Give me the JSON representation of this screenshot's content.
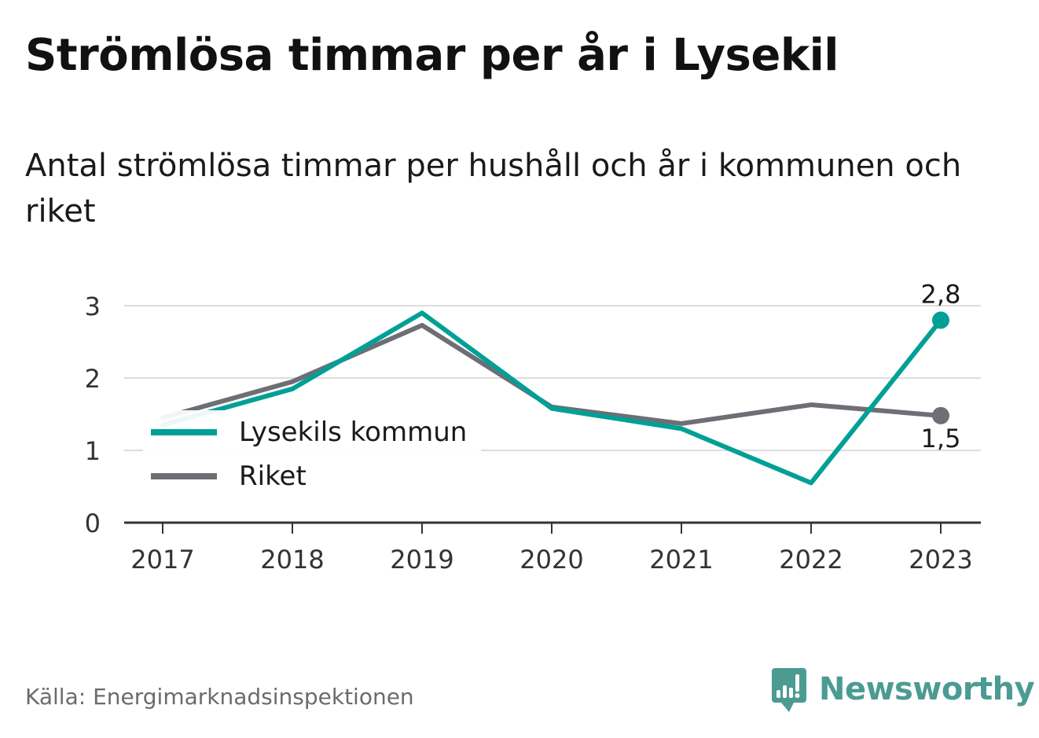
{
  "title": "Strömlösa timmar per år i Lysekil",
  "subtitle": "Antal strömlösa timmar per hushåll och år i kommunen och riket",
  "source": "Källa: Energimarknadsinspektionen",
  "brand": {
    "name": "Newsworthy",
    "color": "#4c9b93"
  },
  "chart_data": {
    "type": "line",
    "x": [
      "2017",
      "2018",
      "2019",
      "2020",
      "2021",
      "2022",
      "2023"
    ],
    "ylim": [
      0,
      3.3
    ],
    "yticks": [
      "0",
      "1",
      "2",
      "3"
    ],
    "grid": true,
    "legend_position": "left",
    "series": [
      {
        "name": "Lysekils kommun",
        "color": "#00a096",
        "values": [
          1.35,
          1.85,
          2.9,
          1.58,
          1.3,
          0.55,
          2.8
        ],
        "end_label": "2,8"
      },
      {
        "name": "Riket",
        "color": "#6e6e75",
        "values": [
          1.45,
          1.95,
          2.73,
          1.6,
          1.37,
          1.63,
          1.48
        ],
        "end_label": "1,5"
      }
    ]
  }
}
